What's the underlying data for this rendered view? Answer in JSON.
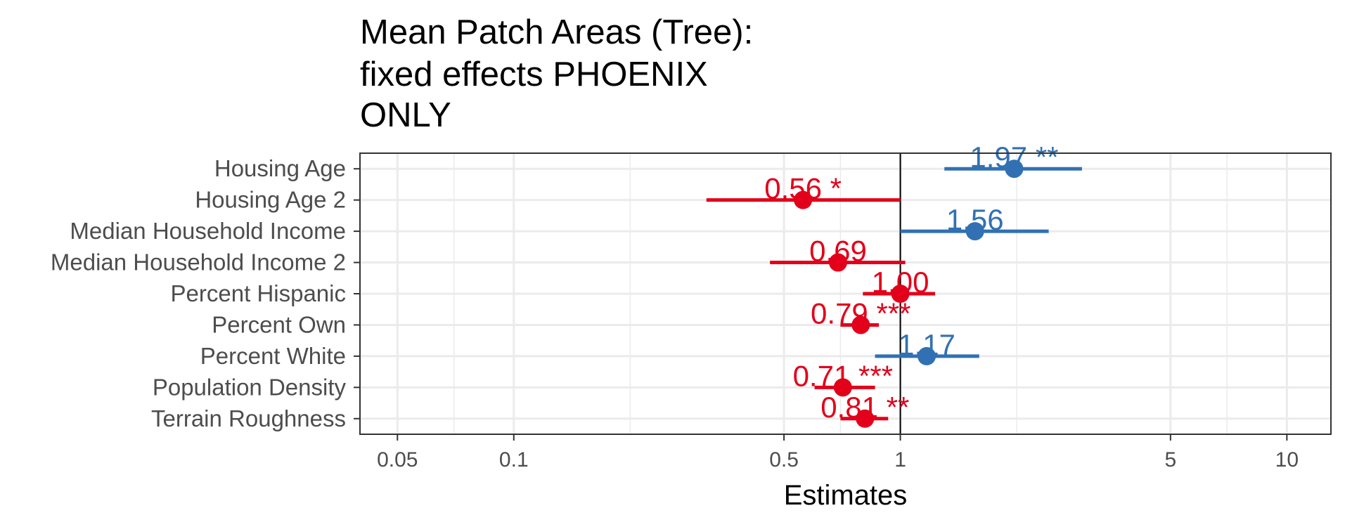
{
  "chart_data": {
    "type": "forest",
    "title_lines": [
      "Mean Patch Areas (Tree):",
      "fixed effects PHOENIX",
      "ONLY"
    ],
    "xlabel": "Estimates",
    "ylabel": "",
    "x_scale": "log",
    "xlim": [
      0.04,
      13
    ],
    "x_ticks": [
      {
        "value": 0.05,
        "label": "0.05"
      },
      {
        "value": 0.1,
        "label": "0.1"
      },
      {
        "value": 0.5,
        "label": "0.5"
      },
      {
        "value": 1,
        "label": "1"
      },
      {
        "value": 5,
        "label": "5"
      },
      {
        "value": 10,
        "label": "10"
      }
    ],
    "minor_grid": [
      0.07,
      0.2,
      0.7,
      2,
      7
    ],
    "reference_line": 1,
    "grid": true,
    "colors": {
      "positive": "#3171b3",
      "negative": "#e2001a",
      "grid": "#ebebeb",
      "reference": "#000000"
    },
    "terms": [
      {
        "name": "Housing Age",
        "estimate": 1.97,
        "ci_low": 1.3,
        "ci_high": 2.95,
        "label": "1.97 **",
        "direction": "positive"
      },
      {
        "name": "Housing Age 2",
        "estimate": 0.56,
        "ci_low": 0.315,
        "ci_high": 1.0,
        "label": "0.56 *",
        "direction": "negative"
      },
      {
        "name": "Median Household Income",
        "estimate": 1.56,
        "ci_low": 1.0,
        "ci_high": 2.42,
        "label": "1.56",
        "direction": "positive"
      },
      {
        "name": "Median Household Income 2",
        "estimate": 0.69,
        "ci_low": 0.46,
        "ci_high": 1.03,
        "label": "0.69",
        "direction": "negative"
      },
      {
        "name": "Percent Hispanic",
        "estimate": 1.0,
        "ci_low": 0.8,
        "ci_high": 1.23,
        "label": "1.00",
        "direction": "negative"
      },
      {
        "name": "Percent Own",
        "estimate": 0.79,
        "ci_low": 0.7,
        "ci_high": 0.88,
        "label": "0.79 ***",
        "direction": "negative"
      },
      {
        "name": "Percent White",
        "estimate": 1.17,
        "ci_low": 0.86,
        "ci_high": 1.6,
        "label": "1.17",
        "direction": "positive"
      },
      {
        "name": "Population Density",
        "estimate": 0.71,
        "ci_low": 0.6,
        "ci_high": 0.86,
        "label": "0.71 ***",
        "direction": "negative"
      },
      {
        "name": "Terrain Roughness",
        "estimate": 0.81,
        "ci_low": 0.7,
        "ci_high": 0.93,
        "label": "0.81 **",
        "direction": "negative"
      }
    ]
  }
}
